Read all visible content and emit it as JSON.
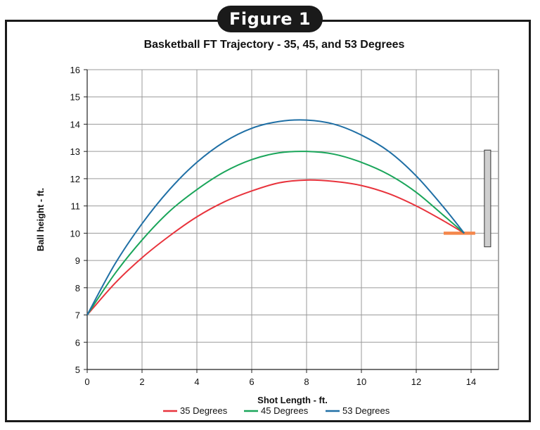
{
  "figure_label": "Figure 1",
  "chart_data": {
    "type": "line",
    "title": "Basketball FT Trajectory - 35, 45, and 53 Degrees",
    "xlabel": "Shot Length - ft.",
    "ylabel": "Ball height - ft.",
    "xlim": [
      0,
      15
    ],
    "ylim": [
      5,
      16
    ],
    "xticks": [
      0,
      2,
      4,
      6,
      8,
      10,
      12,
      14
    ],
    "yticks": [
      5,
      6,
      7,
      8,
      9,
      10,
      11,
      12,
      13,
      14,
      15,
      16
    ],
    "grid": true,
    "legend_position": "bottom",
    "series": [
      {
        "name": "35 Degrees",
        "color": "#e8333c",
        "x": [
          0,
          1,
          2,
          3,
          4,
          5,
          6,
          7,
          8,
          9,
          10,
          11,
          12,
          13,
          13.75
        ],
        "y": [
          7.0,
          8.15,
          9.1,
          9.9,
          10.6,
          11.15,
          11.55,
          11.85,
          11.95,
          11.9,
          11.75,
          11.45,
          11.0,
          10.45,
          10.0
        ]
      },
      {
        "name": "45 Degrees",
        "color": "#1aa55a",
        "x": [
          0,
          1,
          2,
          3,
          4,
          5,
          6,
          7,
          8,
          9,
          10,
          11,
          12,
          13,
          13.75
        ],
        "y": [
          7.0,
          8.5,
          9.75,
          10.8,
          11.6,
          12.25,
          12.7,
          12.95,
          13.0,
          12.9,
          12.6,
          12.15,
          11.5,
          10.65,
          10.0
        ]
      },
      {
        "name": "53 Degrees",
        "color": "#1f6fa5",
        "x": [
          0,
          1,
          2,
          3,
          4,
          5,
          6,
          7,
          8,
          9,
          10,
          11,
          12,
          13,
          13.75
        ],
        "y": [
          7.0,
          8.85,
          10.35,
          11.6,
          12.6,
          13.35,
          13.85,
          14.1,
          14.15,
          14.0,
          13.6,
          13.0,
          12.1,
          10.95,
          10.0
        ]
      }
    ],
    "hoop": {
      "color": "#f4874b",
      "x": [
        13.0,
        14.15
      ],
      "y": 10.0
    },
    "backboard": {
      "color": "#cfcfcf",
      "x": 14.6,
      "y": [
        9.5,
        13.05
      ]
    }
  }
}
